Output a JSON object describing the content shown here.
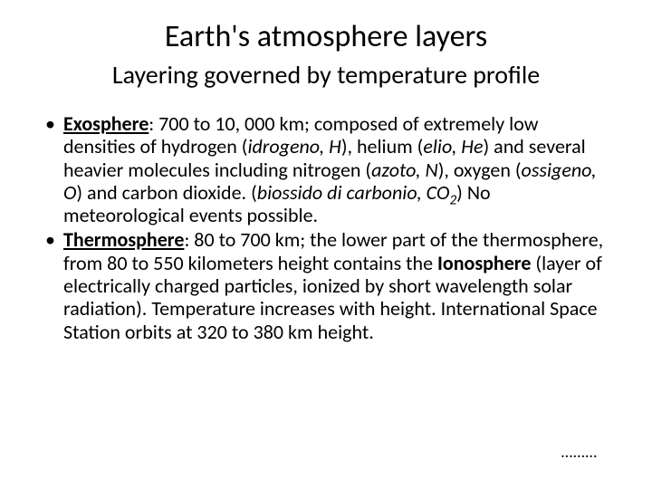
{
  "title": "Earth's atmosphere layers",
  "subtitle": "Layering governed by temperature profile",
  "bullet1": {
    "term": "Exosphere",
    "colon": ": 700 to 10, 000 km; composed of extremely low densities of hydrogen (",
    "it1": "idrogeno, H",
    "p2": "), helium (",
    "it2": "elio, He",
    "p3": ") and several heavier molecules including nitrogen (",
    "it3": "azoto, N",
    "p4": "), oxygen (",
    "it4": "ossigeno, O",
    "p5": ") and carbon dioxide. (",
    "it5a": "biossido di carbonio, CO",
    "it5sub": "2",
    "p6": ") No meteorological events possible."
  },
  "bullet2": {
    "term": "Thermosphere",
    "p1": ": 80 to 700 km; the lower part of the thermosphere, from 80 to 550 kilometers height contains the ",
    "iono": "Ionosphere",
    "p2": " (layer of electrically charged particles, ionized by short wavelength solar radiation). Temperature increases with height. International Space Station orbits at 320 to 380 km height."
  },
  "ellipsis": "………",
  "colors": {
    "background": "#ffffff",
    "text": "#000000"
  },
  "typography": {
    "title_fontsize": 34,
    "subtitle_fontsize": 28,
    "body_fontsize": 22,
    "font_family": "Calibri"
  }
}
